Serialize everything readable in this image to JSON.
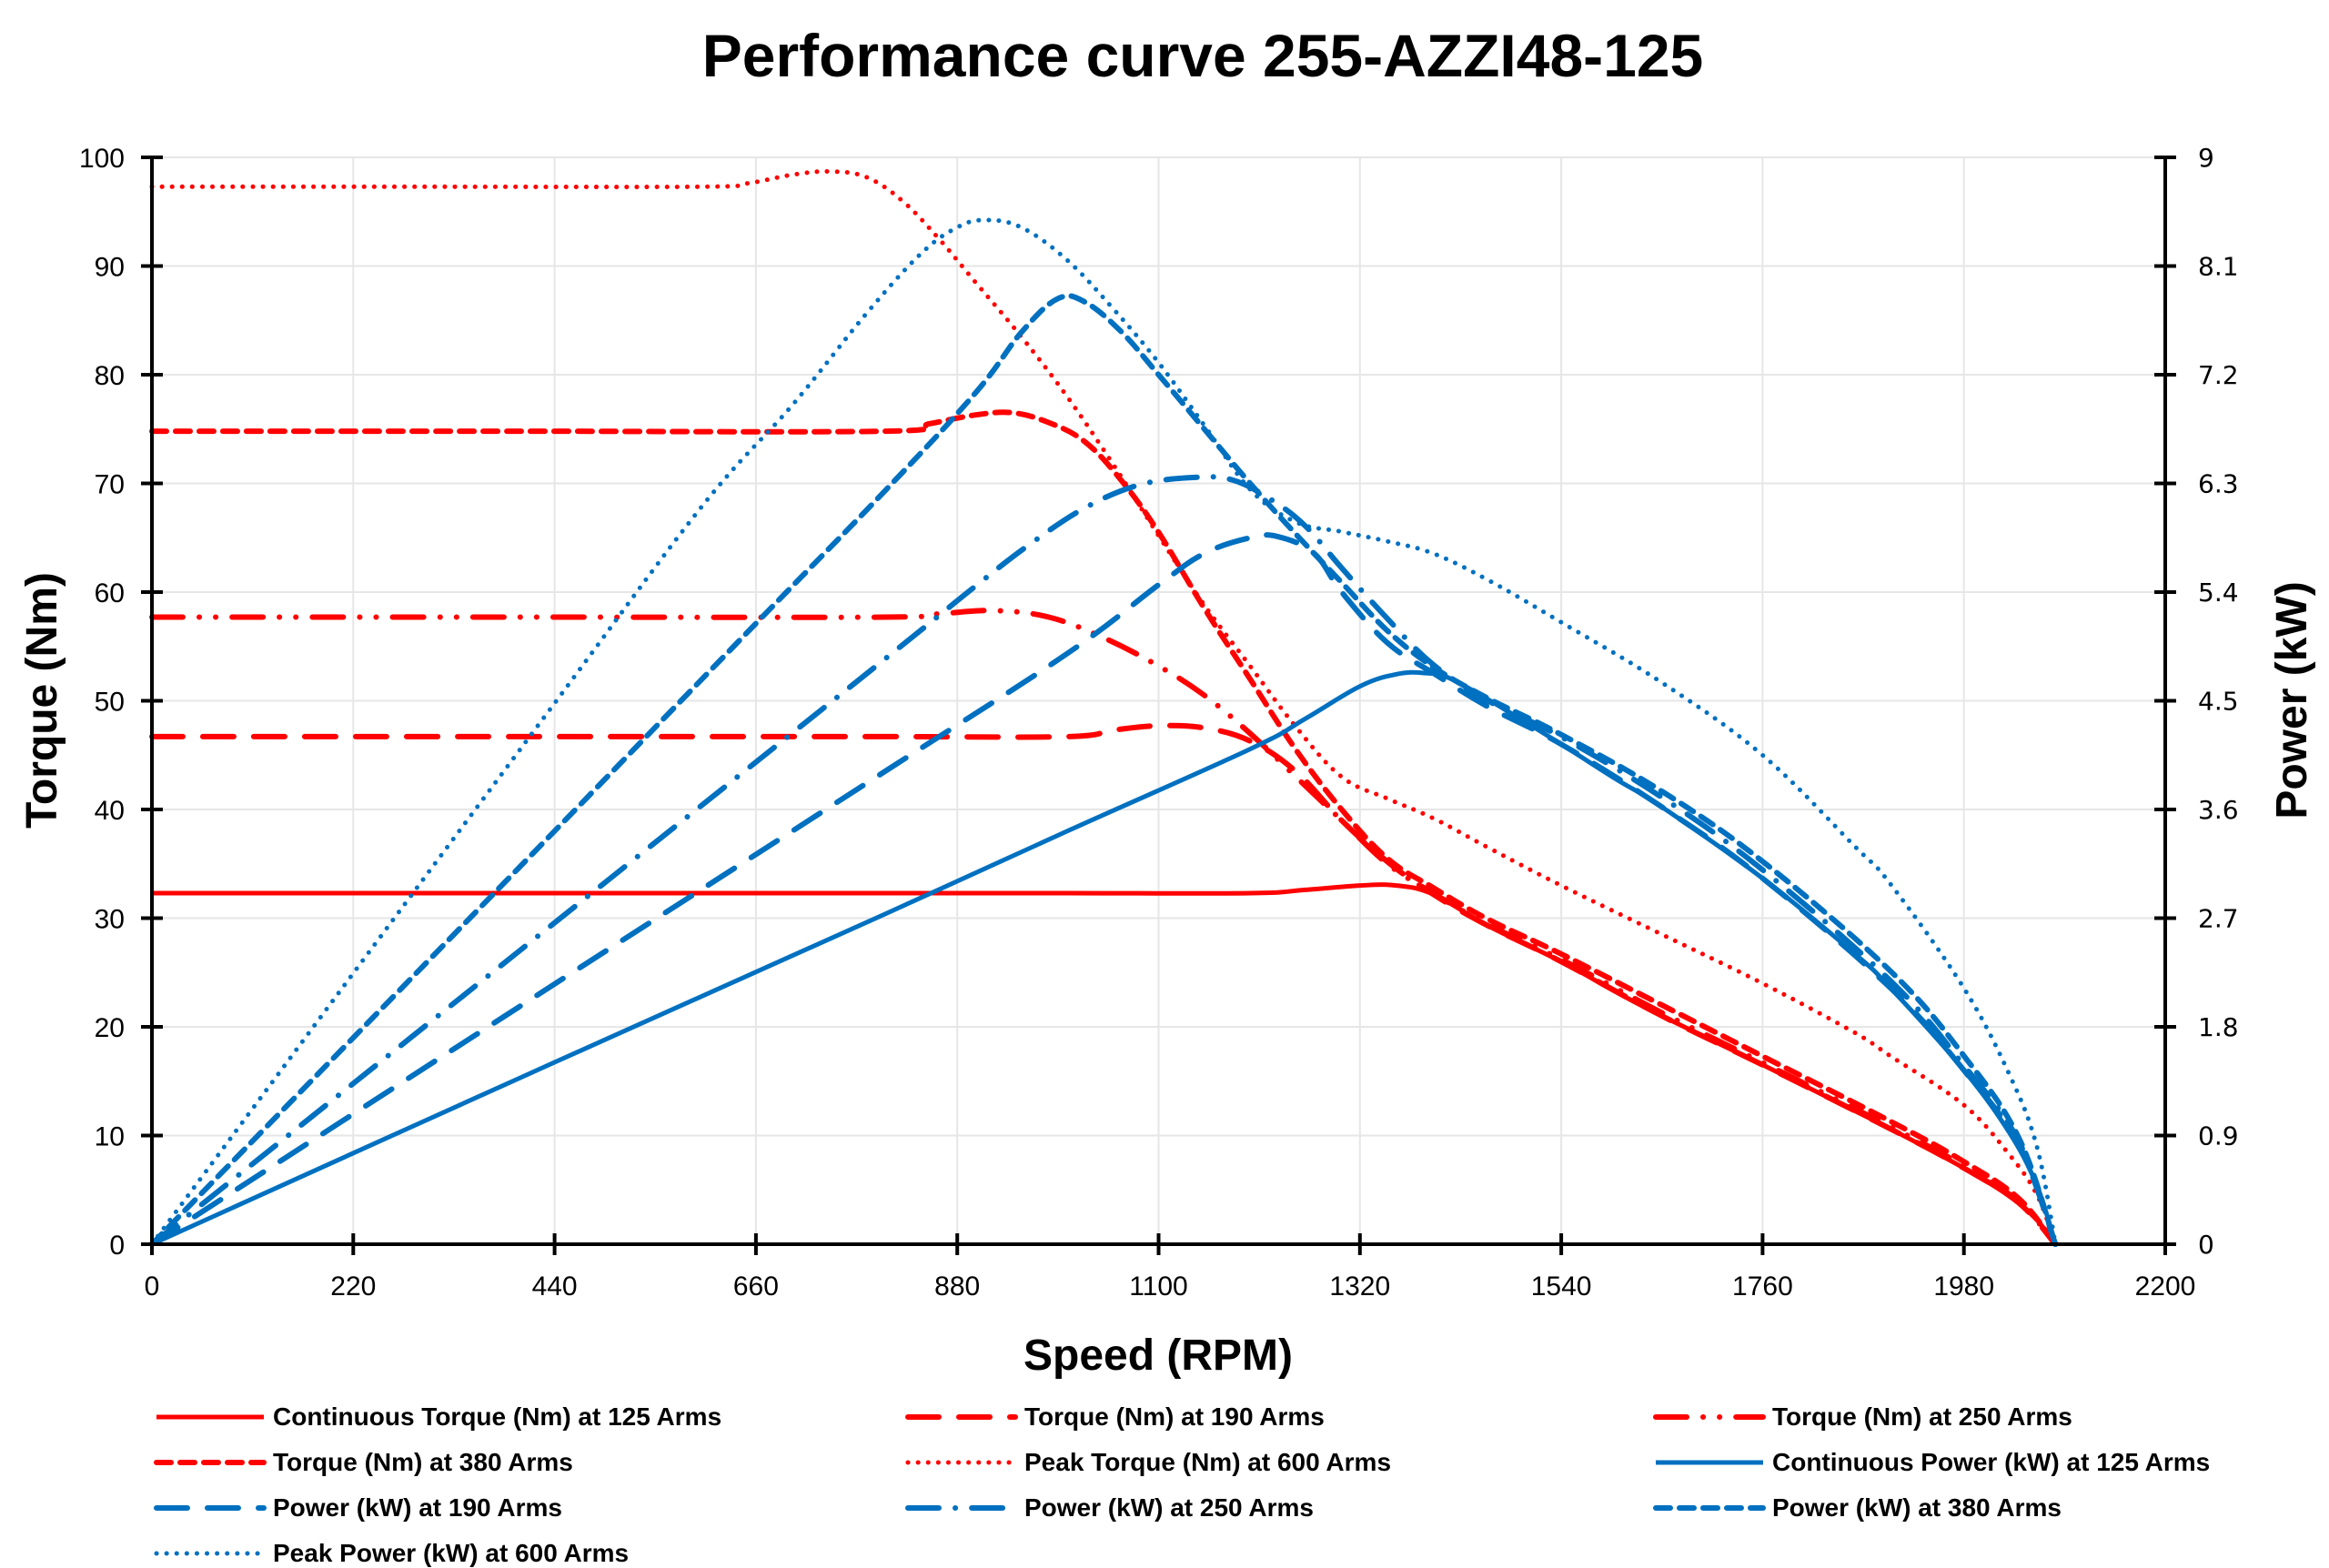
{
  "chart_data": {
    "type": "line",
    "title": "Performance curve 255-AZZI48-125",
    "xlabel": "Speed (RPM)",
    "ylabel": "Torque (Nm)",
    "y2label": "Power (kW)",
    "xlim": [
      0,
      2200
    ],
    "ylim": [
      0,
      100
    ],
    "y2lim": [
      0,
      9
    ],
    "xticks": [
      "0",
      "220",
      "440",
      "660",
      "880",
      "1100",
      "1320",
      "1540",
      "1760",
      "1980",
      "2200"
    ],
    "yticks": [
      "0",
      "10",
      "20",
      "30",
      "40",
      "50",
      "60",
      "70",
      "80",
      "90",
      "100"
    ],
    "y2ticks": [
      "0",
      "0.9",
      "1.8",
      "2.7",
      "3.6",
      "4.5",
      "5.4",
      "6.3",
      "7.2",
      "8.1",
      "9"
    ],
    "grid": true,
    "legend_position": "bottom",
    "colors": {
      "torque": "#ff0000",
      "power": "#0070c0"
    },
    "series": [
      {
        "name": "Continuous Torque (Nm) at 125 Arms",
        "axis": "left",
        "color": "#ff0000",
        "style": "solid",
        "points": [
          [
            0,
            32.3
          ],
          [
            400,
            32.3
          ],
          [
            800,
            32.3
          ],
          [
            1000,
            32.3
          ],
          [
            1200,
            32.3
          ],
          [
            1260,
            32.6
          ],
          [
            1320,
            33.0
          ],
          [
            1360,
            33.0
          ],
          [
            1400,
            32.2
          ],
          [
            1460,
            29.3
          ],
          [
            1540,
            26.0
          ],
          [
            1600,
            23.2
          ],
          [
            1650,
            21.0
          ],
          [
            1760,
            16.5
          ],
          [
            1860,
            12.3
          ],
          [
            1900,
            10.6
          ],
          [
            1980,
            7.0
          ],
          [
            2030,
            4.4
          ],
          [
            2060,
            2.2
          ],
          [
            2080,
            0
          ]
        ]
      },
      {
        "name": "Torque (Nm) at 190 Arms",
        "axis": "left",
        "color": "#ff0000",
        "style": "longdash",
        "points": [
          [
            0,
            46.7
          ],
          [
            400,
            46.7
          ],
          [
            800,
            46.7
          ],
          [
            1000,
            46.7
          ],
          [
            1050,
            47.3
          ],
          [
            1100,
            47.7
          ],
          [
            1150,
            47.5
          ],
          [
            1200,
            46.3
          ],
          [
            1250,
            43.5
          ],
          [
            1300,
            39.0
          ],
          [
            1350,
            35.2
          ],
          [
            1400,
            32.2
          ],
          [
            1460,
            29.3
          ],
          [
            1540,
            26.0
          ],
          [
            1650,
            21.0
          ],
          [
            1760,
            16.5
          ],
          [
            1900,
            10.6
          ],
          [
            1980,
            7.0
          ],
          [
            2040,
            3.8
          ],
          [
            2080,
            0
          ]
        ]
      },
      {
        "name": "Torque (Nm) at 250 Arms",
        "axis": "left",
        "color": "#ff0000",
        "style": "dashdotdot",
        "points": [
          [
            0,
            57.7
          ],
          [
            400,
            57.7
          ],
          [
            800,
            57.7
          ],
          [
            860,
            58.0
          ],
          [
            920,
            58.3
          ],
          [
            980,
            57.7
          ],
          [
            1040,
            55.8
          ],
          [
            1100,
            53.2
          ],
          [
            1150,
            50.5
          ],
          [
            1200,
            47.0
          ],
          [
            1250,
            43.0
          ],
          [
            1300,
            39.0
          ],
          [
            1350,
            35.0
          ],
          [
            1400,
            32.3
          ],
          [
            1460,
            29.4
          ],
          [
            1540,
            26.2
          ],
          [
            1650,
            21.3
          ],
          [
            1760,
            16.7
          ],
          [
            1900,
            10.8
          ],
          [
            1980,
            7.2
          ],
          [
            2040,
            3.9
          ],
          [
            2080,
            0
          ]
        ]
      },
      {
        "name": "Torque (Nm) at 380 Arms",
        "axis": "left",
        "color": "#ff0000",
        "style": "dash",
        "points": [
          [
            0,
            74.8
          ],
          [
            400,
            74.8
          ],
          [
            800,
            74.8
          ],
          [
            850,
            75.5
          ],
          [
            900,
            76.3
          ],
          [
            940,
            76.5
          ],
          [
            980,
            75.6
          ],
          [
            1020,
            73.8
          ],
          [
            1060,
            70.2
          ],
          [
            1100,
            65.5
          ],
          [
            1150,
            58.5
          ],
          [
            1200,
            52.0
          ],
          [
            1250,
            45.5
          ],
          [
            1300,
            40.0
          ],
          [
            1350,
            35.5
          ],
          [
            1400,
            32.8
          ],
          [
            1460,
            29.9
          ],
          [
            1540,
            26.7
          ],
          [
            1650,
            22.0
          ],
          [
            1760,
            17.3
          ],
          [
            1900,
            11.3
          ],
          [
            1980,
            7.6
          ],
          [
            2040,
            4.2
          ],
          [
            2080,
            0
          ]
        ]
      },
      {
        "name": "Peak Torque (Nm) at 600 Arms",
        "axis": "left",
        "color": "#ff0000",
        "style": "dot",
        "points": [
          [
            0,
            97.3
          ],
          [
            300,
            97.3
          ],
          [
            600,
            97.3
          ],
          [
            650,
            97.6
          ],
          [
            700,
            98.4
          ],
          [
            740,
            98.7
          ],
          [
            780,
            98.2
          ],
          [
            820,
            96.0
          ],
          [
            860,
            92.5
          ],
          [
            900,
            88.5
          ],
          [
            950,
            83.5
          ],
          [
            1000,
            78.0
          ],
          [
            1050,
            71.8
          ],
          [
            1100,
            65.2
          ],
          [
            1150,
            58.8
          ],
          [
            1200,
            53.2
          ],
          [
            1250,
            47.6
          ],
          [
            1300,
            43.0
          ],
          [
            1350,
            41.0
          ],
          [
            1400,
            39.2
          ],
          [
            1460,
            36.5
          ],
          [
            1540,
            33.0
          ],
          [
            1650,
            28.5
          ],
          [
            1760,
            24.0
          ],
          [
            1860,
            19.5
          ],
          [
            1900,
            17.3
          ],
          [
            1980,
            12.8
          ],
          [
            2030,
            8.2
          ],
          [
            2060,
            4.5
          ],
          [
            2080,
            0
          ]
        ]
      },
      {
        "name": "Continuous Power (kW) at 125 Arms",
        "axis": "right",
        "color": "#0070c0",
        "style": "solid",
        "points": [
          [
            0,
            0
          ],
          [
            400,
            1.37
          ],
          [
            800,
            2.73
          ],
          [
            1000,
            3.42
          ],
          [
            1200,
            4.1
          ],
          [
            1260,
            4.35
          ],
          [
            1320,
            4.62
          ],
          [
            1360,
            4.72
          ],
          [
            1390,
            4.73
          ],
          [
            1420,
            4.68
          ],
          [
            1480,
            4.42
          ],
          [
            1540,
            4.14
          ],
          [
            1600,
            3.85
          ],
          [
            1650,
            3.62
          ],
          [
            1760,
            3.03
          ],
          [
            1860,
            2.41
          ],
          [
            1900,
            2.12
          ],
          [
            1980,
            1.44
          ],
          [
            2030,
            0.92
          ],
          [
            2060,
            0.48
          ],
          [
            2080,
            0
          ]
        ]
      },
      {
        "name": "Power (kW) at 190 Arms",
        "axis": "right",
        "color": "#0070c0",
        "style": "longdash",
        "points": [
          [
            0,
            0
          ],
          [
            400,
            1.96
          ],
          [
            800,
            3.91
          ],
          [
            1000,
            4.89
          ],
          [
            1100,
            5.46
          ],
          [
            1150,
            5.72
          ],
          [
            1200,
            5.85
          ],
          [
            1230,
            5.86
          ],
          [
            1270,
            5.72
          ],
          [
            1300,
            5.4
          ],
          [
            1350,
            4.98
          ],
          [
            1400,
            4.73
          ],
          [
            1460,
            4.45
          ],
          [
            1540,
            4.14
          ],
          [
            1650,
            3.62
          ],
          [
            1760,
            3.03
          ],
          [
            1900,
            2.12
          ],
          [
            1980,
            1.44
          ],
          [
            2040,
            0.82
          ],
          [
            2080,
            0
          ]
        ]
      },
      {
        "name": "Power (kW) at 250 Arms",
        "axis": "right",
        "color": "#0070c0",
        "style": "dashdot",
        "points": [
          [
            0,
            0
          ],
          [
            400,
            2.42
          ],
          [
            800,
            4.84
          ],
          [
            900,
            5.45
          ],
          [
            960,
            5.8
          ],
          [
            1020,
            6.1
          ],
          [
            1080,
            6.29
          ],
          [
            1140,
            6.35
          ],
          [
            1180,
            6.33
          ],
          [
            1220,
            6.18
          ],
          [
            1260,
            5.95
          ],
          [
            1300,
            5.6
          ],
          [
            1350,
            5.18
          ],
          [
            1400,
            4.8
          ],
          [
            1460,
            4.5
          ],
          [
            1540,
            4.2
          ],
          [
            1650,
            3.7
          ],
          [
            1760,
            3.1
          ],
          [
            1900,
            2.18
          ],
          [
            1980,
            1.48
          ],
          [
            2040,
            0.85
          ],
          [
            2080,
            0
          ]
        ]
      },
      {
        "name": "Power (kW) at 380 Arms",
        "axis": "right",
        "color": "#0070c0",
        "style": "dash",
        "points": [
          [
            0,
            0
          ],
          [
            400,
            3.11
          ],
          [
            660,
            5.14
          ],
          [
            800,
            6.23
          ],
          [
            900,
            7.05
          ],
          [
            950,
            7.55
          ],
          [
            990,
            7.83
          ],
          [
            1020,
            7.8
          ],
          [
            1060,
            7.55
          ],
          [
            1100,
            7.2
          ],
          [
            1150,
            6.75
          ],
          [
            1200,
            6.3
          ],
          [
            1250,
            5.88
          ],
          [
            1300,
            5.48
          ],
          [
            1350,
            5.08
          ],
          [
            1400,
            4.78
          ],
          [
            1460,
            4.52
          ],
          [
            1540,
            4.22
          ],
          [
            1650,
            3.75
          ],
          [
            1760,
            3.17
          ],
          [
            1900,
            2.26
          ],
          [
            1980,
            1.56
          ],
          [
            2040,
            0.88
          ],
          [
            2080,
            0
          ]
        ]
      },
      {
        "name": "Peak Power (kW) at 600 Arms",
        "axis": "right",
        "color": "#0070c0",
        "style": "dot",
        "points": [
          [
            0,
            0
          ],
          [
            200,
            2.04
          ],
          [
            440,
            4.48
          ],
          [
            600,
            6.1
          ],
          [
            700,
            6.95
          ],
          [
            780,
            7.7
          ],
          [
            840,
            8.2
          ],
          [
            880,
            8.42
          ],
          [
            910,
            8.48
          ],
          [
            950,
            8.42
          ],
          [
            1000,
            8.15
          ],
          [
            1050,
            7.75
          ],
          [
            1100,
            7.3
          ],
          [
            1150,
            6.78
          ],
          [
            1200,
            6.25
          ],
          [
            1250,
            5.98
          ],
          [
            1300,
            5.9
          ],
          [
            1350,
            5.82
          ],
          [
            1400,
            5.72
          ],
          [
            1460,
            5.5
          ],
          [
            1540,
            5.15
          ],
          [
            1650,
            4.65
          ],
          [
            1760,
            4.05
          ],
          [
            1860,
            3.3
          ],
          [
            1900,
            2.98
          ],
          [
            1980,
            2.12
          ],
          [
            2030,
            1.4
          ],
          [
            2060,
            0.8
          ],
          [
            2080,
            0
          ]
        ]
      }
    ]
  }
}
